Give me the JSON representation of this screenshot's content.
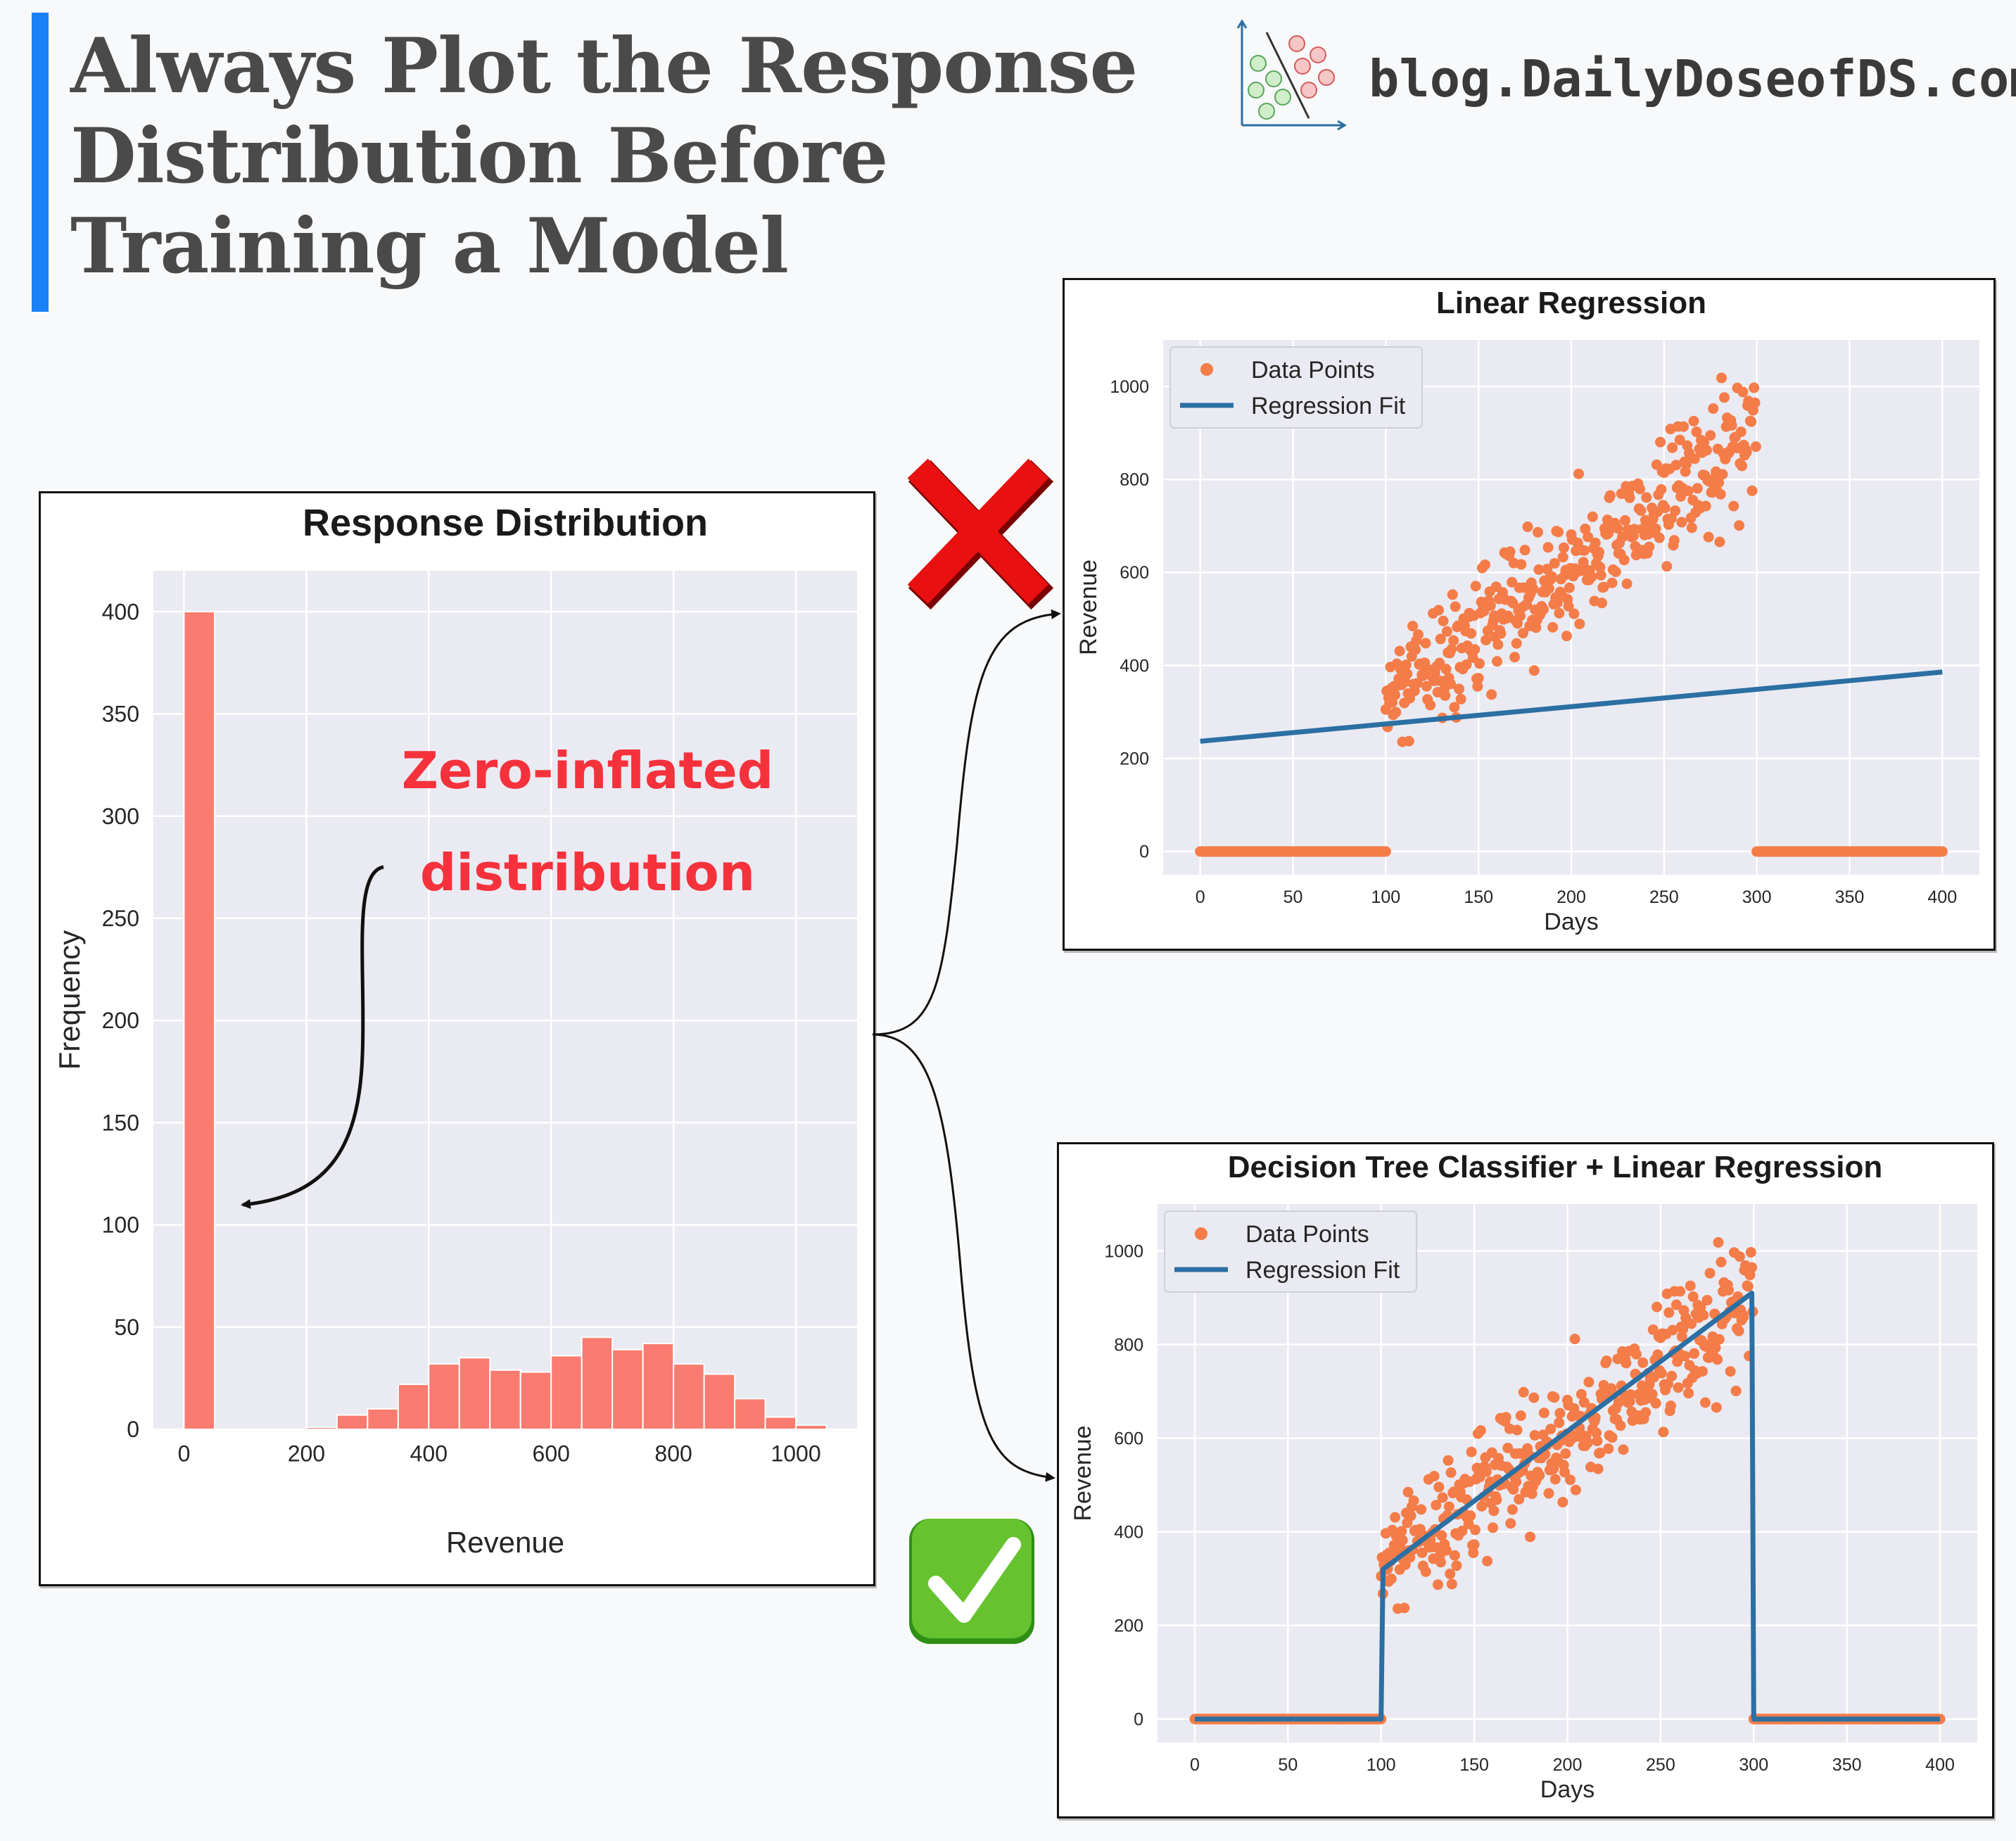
{
  "header": {
    "title_lines": [
      "Always Plot the Response",
      "Distribution Before",
      "Training a Model"
    ],
    "brand": "blog.DailyDoseofDS.com",
    "accent_color": "#1a82f7"
  },
  "annotation": {
    "lines": [
      "Zero-inflated",
      "distribution"
    ],
    "color": "#f5323c"
  },
  "marks": {
    "wrong": "cross-mark-icon",
    "right": "check-mark-icon"
  },
  "chart_data": [
    {
      "type": "bar",
      "title": "Response Distribution",
      "xlabel": "Revenue",
      "ylabel": "Frequency",
      "bar_color": "#fa7b6f",
      "bin_width": 50,
      "xlim": [
        -50,
        1100
      ],
      "ylim": [
        0,
        420
      ],
      "xticks": [
        0,
        200,
        400,
        600,
        800,
        1000
      ],
      "yticks": [
        0,
        50,
        100,
        150,
        200,
        250,
        300,
        350,
        400
      ],
      "bins": [
        {
          "x0": 0,
          "x1": 50,
          "count": 400
        },
        {
          "x0": 150,
          "x1": 200,
          "count": 0
        },
        {
          "x0": 200,
          "x1": 250,
          "count": 1
        },
        {
          "x0": 250,
          "x1": 300,
          "count": 7
        },
        {
          "x0": 300,
          "x1": 350,
          "count": 10
        },
        {
          "x0": 350,
          "x1": 400,
          "count": 22
        },
        {
          "x0": 400,
          "x1": 450,
          "count": 32
        },
        {
          "x0": 450,
          "x1": 500,
          "count": 35
        },
        {
          "x0": 500,
          "x1": 550,
          "count": 29
        },
        {
          "x0": 550,
          "x1": 600,
          "count": 28
        },
        {
          "x0": 600,
          "x1": 650,
          "count": 36
        },
        {
          "x0": 650,
          "x1": 700,
          "count": 45
        },
        {
          "x0": 700,
          "x1": 750,
          "count": 39
        },
        {
          "x0": 750,
          "x1": 800,
          "count": 42
        },
        {
          "x0": 800,
          "x1": 850,
          "count": 32
        },
        {
          "x0": 850,
          "x1": 900,
          "count": 27
        },
        {
          "x0": 900,
          "x1": 950,
          "count": 15
        },
        {
          "x0": 950,
          "x1": 1000,
          "count": 6
        },
        {
          "x0": 1000,
          "x1": 1050,
          "count": 2
        }
      ]
    },
    {
      "type": "scatter",
      "title": "Linear Regression",
      "xlabel": "Days",
      "ylabel": "Revenue",
      "xlim": [
        -20,
        420
      ],
      "ylim": [
        -50,
        1100
      ],
      "xticks": [
        0,
        50,
        100,
        150,
        200,
        250,
        300,
        350,
        400
      ],
      "yticks": [
        0,
        200,
        400,
        600,
        800,
        1000
      ],
      "legend": {
        "position": "top-left",
        "entries": [
          "Data Points",
          "Regression Fit"
        ]
      },
      "colors": {
        "points": "#f47c48",
        "fit": "#2b6fa3"
      },
      "series": [
        {
          "name": "Data Points",
          "kind": "scatter",
          "segments": [
            {
              "x_range": [
                0,
                100
              ],
              "y": 0
            },
            {
              "x_range": [
                100,
                300
              ],
              "y_start": 310,
              "y_end": 900,
              "spread": 90
            },
            {
              "x_range": [
                300,
                400
              ],
              "y": 0
            }
          ]
        },
        {
          "name": "Regression Fit",
          "kind": "line",
          "points": [
            [
              0,
              237
            ],
            [
              400,
              386
            ]
          ]
        }
      ]
    },
    {
      "type": "scatter",
      "title": "Decision Tree Classifier + Linear Regression",
      "xlabel": "Days",
      "ylabel": "Revenue",
      "xlim": [
        -20,
        420
      ],
      "ylim": [
        -50,
        1100
      ],
      "xticks": [
        0,
        50,
        100,
        150,
        200,
        250,
        300,
        350,
        400
      ],
      "yticks": [
        0,
        200,
        400,
        600,
        800,
        1000
      ],
      "legend": {
        "position": "top-left",
        "entries": [
          "Data Points",
          "Regression Fit"
        ]
      },
      "colors": {
        "points": "#f47c48",
        "fit": "#2b6fa3"
      },
      "series": [
        {
          "name": "Data Points",
          "kind": "scatter",
          "segments": [
            {
              "x_range": [
                0,
                100
              ],
              "y": 0
            },
            {
              "x_range": [
                100,
                300
              ],
              "y_start": 310,
              "y_end": 900,
              "spread": 90
            },
            {
              "x_range": [
                300,
                400
              ],
              "y": 0
            }
          ]
        },
        {
          "name": "Regression Fit",
          "kind": "line",
          "points": [
            [
              0,
              0
            ],
            [
              100,
              0
            ],
            [
              101,
              320
            ],
            [
              299,
              910
            ],
            [
              300,
              0
            ],
            [
              400,
              0
            ]
          ]
        }
      ]
    }
  ]
}
